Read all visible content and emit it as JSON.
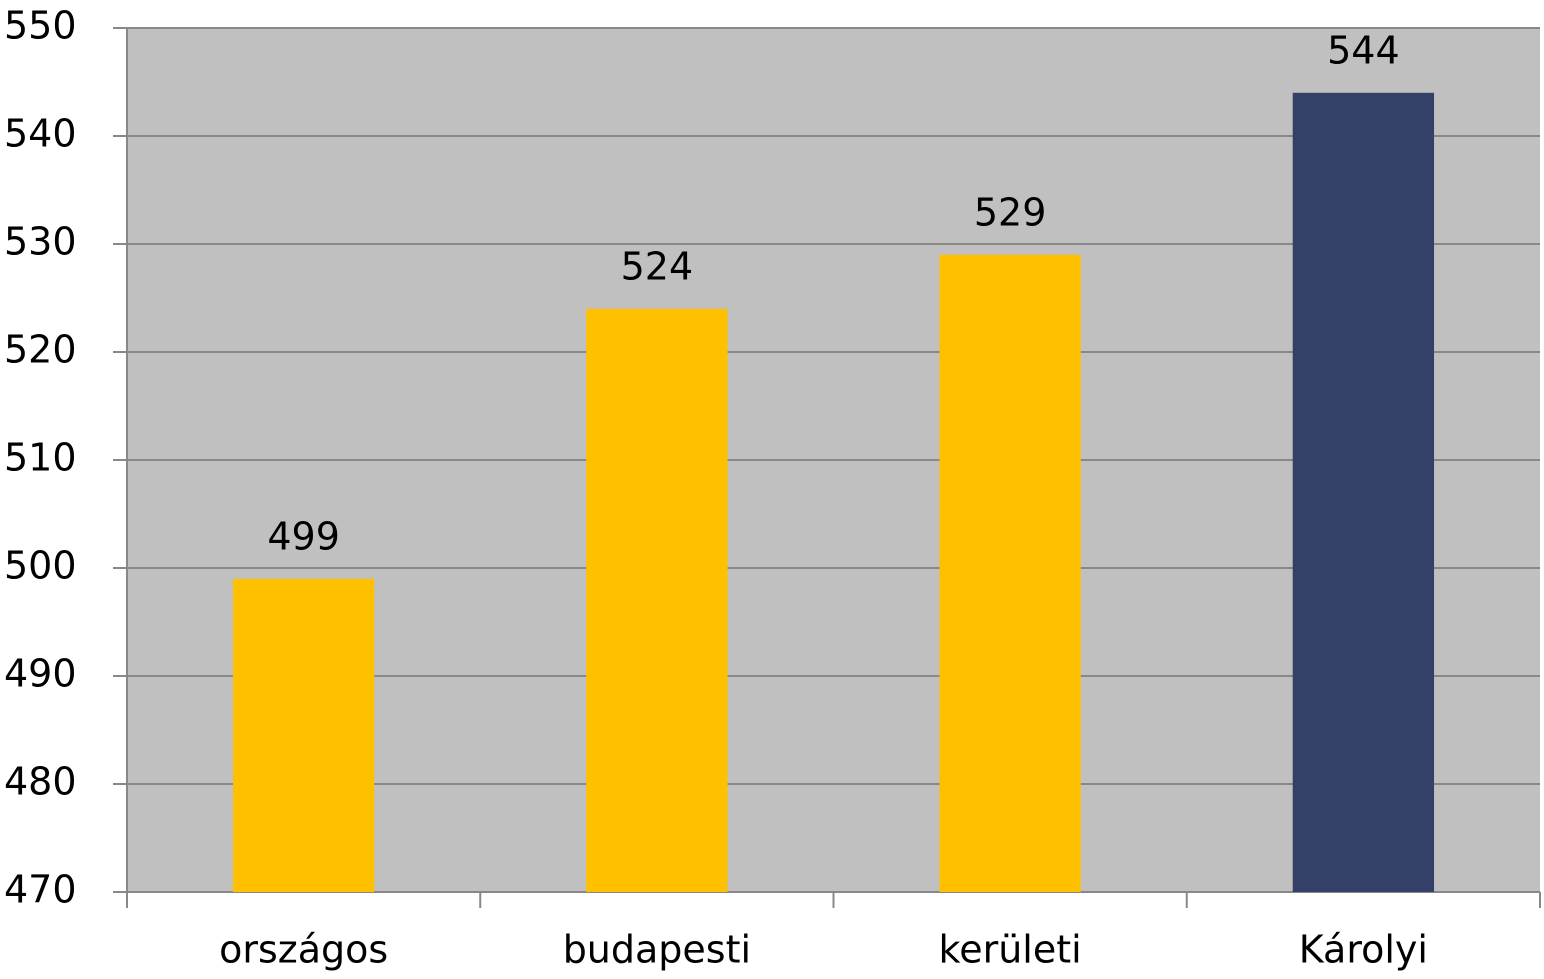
{
  "chart_data": {
    "type": "bar",
    "categories": [
      "országos",
      "budapesti",
      "kerületi",
      "Károlyi"
    ],
    "values": [
      499,
      524,
      529,
      544
    ],
    "colors": [
      "#ffc000",
      "#ffc000",
      "#ffc000",
      "#344068"
    ],
    "ylim": [
      470,
      550
    ],
    "yticks": [
      470,
      480,
      490,
      500,
      510,
      520,
      530,
      540,
      550
    ],
    "grid": true
  }
}
